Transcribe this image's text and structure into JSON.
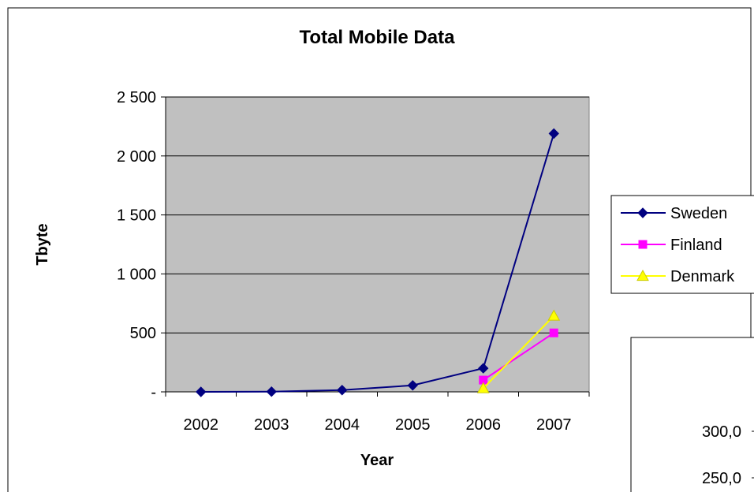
{
  "chart_data": {
    "type": "line",
    "title": "Total Mobile Data",
    "xlabel": "Year",
    "ylabel": "Tbyte",
    "categories": [
      "2002",
      "2003",
      "2004",
      "2005",
      "2006",
      "2007"
    ],
    "ylim": [
      0,
      2500
    ],
    "yticks": [
      0,
      500,
      1000,
      1500,
      2000,
      2500
    ],
    "ytick_labels": [
      "-",
      "500",
      "1 000",
      "1 500",
      "2 000",
      "2 500"
    ],
    "grid": true,
    "legend": "right",
    "series": [
      {
        "name": "Sweden",
        "color": "#000080",
        "marker": "diamond",
        "values": [
          0,
          2,
          15,
          55,
          200,
          2190
        ]
      },
      {
        "name": "Finland",
        "color": "#ff00ff",
        "marker": "square",
        "values": [
          null,
          null,
          null,
          null,
          100,
          500
        ]
      },
      {
        "name": "Denmark",
        "color": "#ffff00",
        "marker": "triangle",
        "values": [
          null,
          null,
          null,
          null,
          30,
          645
        ]
      }
    ]
  },
  "inset_chart": {
    "ytick_labels": [
      "300,0",
      "250,0"
    ]
  }
}
